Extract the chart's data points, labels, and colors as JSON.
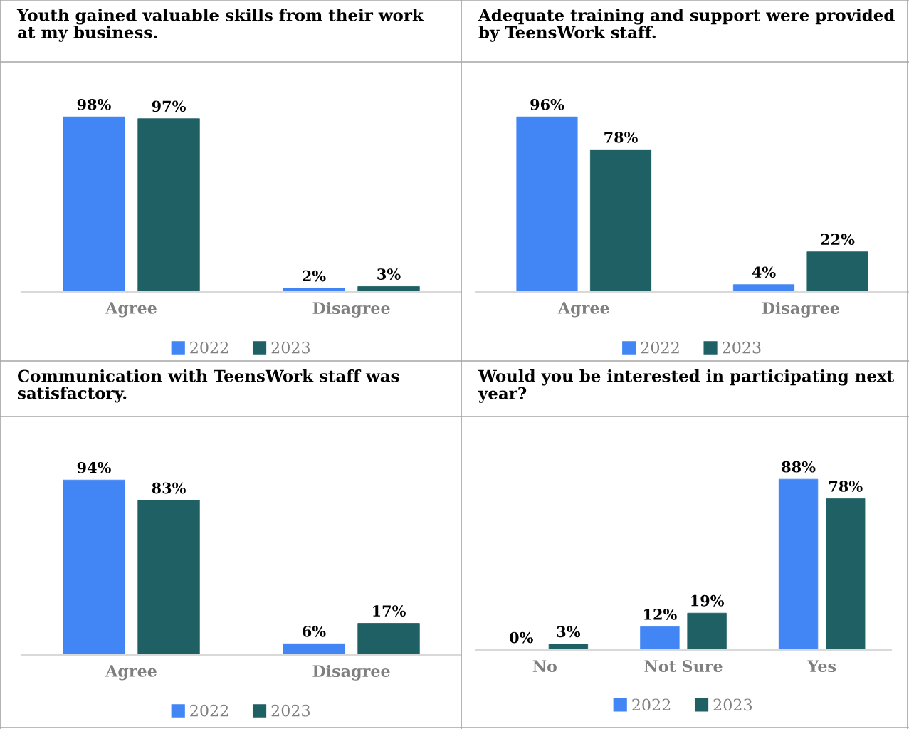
{
  "chart_data": [
    {
      "type": "bar",
      "title": "Youth gained valuable skills from their work at my business.",
      "categories": [
        "Agree",
        "Disagree"
      ],
      "series": [
        {
          "name": "2022",
          "color": "#4285f4",
          "values": [
            98,
            2
          ],
          "value_labels": [
            "98%",
            "2%"
          ]
        },
        {
          "name": "2023",
          "color": "#1f6064",
          "values": [
            97,
            3
          ],
          "value_labels": [
            "97%",
            "3%"
          ]
        }
      ],
      "legend": "bottom",
      "grid": false
    },
    {
      "type": "bar",
      "title": "Adequate training and support were provided by TeensWork staff.",
      "categories": [
        "Agree",
        "Disagree"
      ],
      "series": [
        {
          "name": "2022",
          "color": "#4285f4",
          "values": [
            96,
            4
          ],
          "value_labels": [
            "96%",
            "4%"
          ]
        },
        {
          "name": "2023",
          "color": "#1f6064",
          "values": [
            78,
            22
          ],
          "value_labels": [
            "78%",
            "22%"
          ]
        }
      ],
      "legend": "bottom",
      "grid": false
    },
    {
      "type": "bar",
      "title": "Communication with TeensWork staff was satisfactory.",
      "categories": [
        "Agree",
        "Disagree"
      ],
      "series": [
        {
          "name": "2022",
          "color": "#4285f4",
          "values": [
            94,
            6
          ],
          "value_labels": [
            "94%",
            "6%"
          ]
        },
        {
          "name": "2023",
          "color": "#1f6064",
          "values": [
            83,
            17
          ],
          "value_labels": [
            "83%",
            "17%"
          ]
        }
      ],
      "legend": "bottom",
      "grid": false
    },
    {
      "type": "bar",
      "title": "Would you be interested in participating next year?",
      "categories": [
        "No",
        "Not Sure",
        "Yes"
      ],
      "series": [
        {
          "name": "2022",
          "color": "#4285f4",
          "values": [
            0,
            12,
            88
          ],
          "value_labels": [
            "0%",
            "12%",
            "88%"
          ]
        },
        {
          "name": "2023",
          "color": "#1f6064",
          "values": [
            3,
            19,
            78
          ],
          "value_labels": [
            "3%",
            "19%",
            "78%"
          ]
        }
      ],
      "legend": "bottom",
      "grid": false
    }
  ]
}
